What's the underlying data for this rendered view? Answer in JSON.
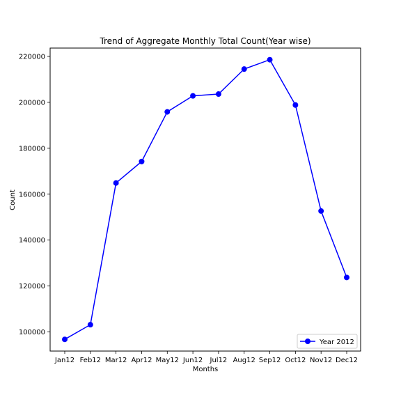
{
  "chart_data": {
    "type": "line",
    "title": "Trend of Aggregate Monthly Total Count(Year wise)",
    "xlabel": "Months",
    "ylabel": "Count",
    "categories": [
      "Jan12",
      "Feb12",
      "Mar12",
      "Apr12",
      "May12",
      "Jun12",
      "Jul12",
      "Aug12",
      "Sep12",
      "Oct12",
      "Nov12",
      "Dec12"
    ],
    "series": [
      {
        "name": "Year 2012",
        "color": "#0000ff",
        "marker": "circle",
        "values": [
          96744,
          103137,
          164875,
          174224,
          195865,
          202830,
          203607,
          214503,
          218573,
          198841,
          152664,
          123713
        ]
      }
    ],
    "ylim": [
      91650,
      223650
    ],
    "yticks": [
      100000,
      120000,
      140000,
      160000,
      180000,
      200000,
      220000
    ],
    "ytick_labels": [
      "100000",
      "120000",
      "140000",
      "160000",
      "180000",
      "200000",
      "220000"
    ],
    "grid": false,
    "legend_position": "lower right"
  }
}
